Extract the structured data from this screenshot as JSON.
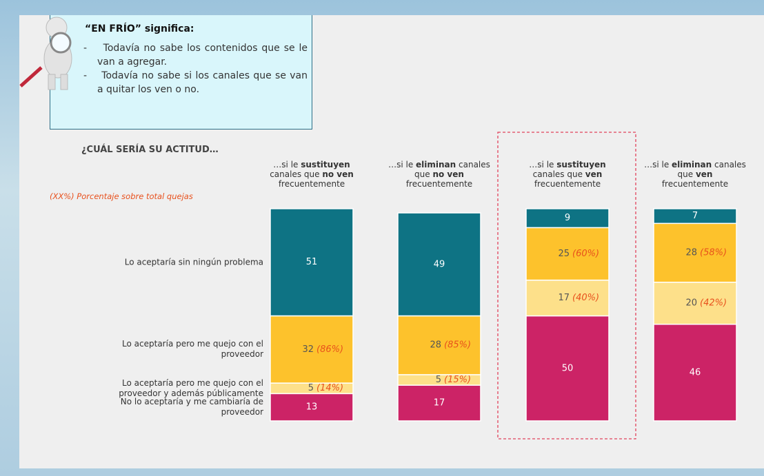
{
  "info_box": {
    "title": "“EN FRÍO” significa:",
    "bullets": [
      "Todavía no sabe los contenidos que se le van a agregar.",
      "Todavía no sabe si los canales que se van a quitar los ven o no."
    ]
  },
  "chart_data": {
    "type": "stacked_bar",
    "title": "¿CUÁL SERÍA SU ACTITUD…",
    "subtitle": "(XX%) Porcentaje sobre total quejas",
    "categories": [
      [
        {
          "text": "…si le "
        },
        {
          "text": "sustituyen",
          "bold": true
        },
        {
          "text": " canales que "
        },
        {
          "text": "no ven",
          "bold": true
        },
        {
          "text": " frecuentemente"
        }
      ],
      [
        {
          "text": "…si le "
        },
        {
          "text": "eliminan",
          "bold": true
        },
        {
          "text": " canales que "
        },
        {
          "text": "no ven",
          "bold": true
        },
        {
          "text": " frecuentemente"
        }
      ],
      [
        {
          "text": "…si le "
        },
        {
          "text": "sustituyen",
          "bold": true
        },
        {
          "text": " canales que "
        },
        {
          "text": "ven",
          "bold": true
        },
        {
          "text": " frecuentemente"
        }
      ],
      [
        {
          "text": "…si le "
        },
        {
          "text": "eliminan",
          "bold": true
        },
        {
          "text": " canales que "
        },
        {
          "text": "ven",
          "bold": true
        },
        {
          "text": " frecuentemente"
        }
      ]
    ],
    "ylim": [
      0,
      100
    ],
    "highlight": 2,
    "series": [
      {
        "name": "Lo aceptaría sin ningún problema",
        "color": "#0e7384",
        "values": [
          51,
          49,
          9,
          7
        ]
      },
      {
        "name": "Lo aceptaría pero me quejo con el proveedor",
        "color": "#fdc22c",
        "values": [
          32,
          28,
          25,
          28
        ],
        "share_labels": [
          "(86%)",
          "(85%)",
          "(60%)",
          "(58%)"
        ]
      },
      {
        "name": "Lo aceptaría pero me quejo con el proveedor y además públicamente",
        "color": "#fde08a",
        "values": [
          5,
          5,
          17,
          20
        ],
        "share_labels": [
          "(14%)",
          "(15%)",
          "(40%)",
          "(42%)"
        ]
      },
      {
        "name": "No lo aceptaría y me cambiaría de proveedor",
        "color": "#cc2366",
        "values": [
          13,
          17,
          50,
          46
        ]
      }
    ]
  }
}
